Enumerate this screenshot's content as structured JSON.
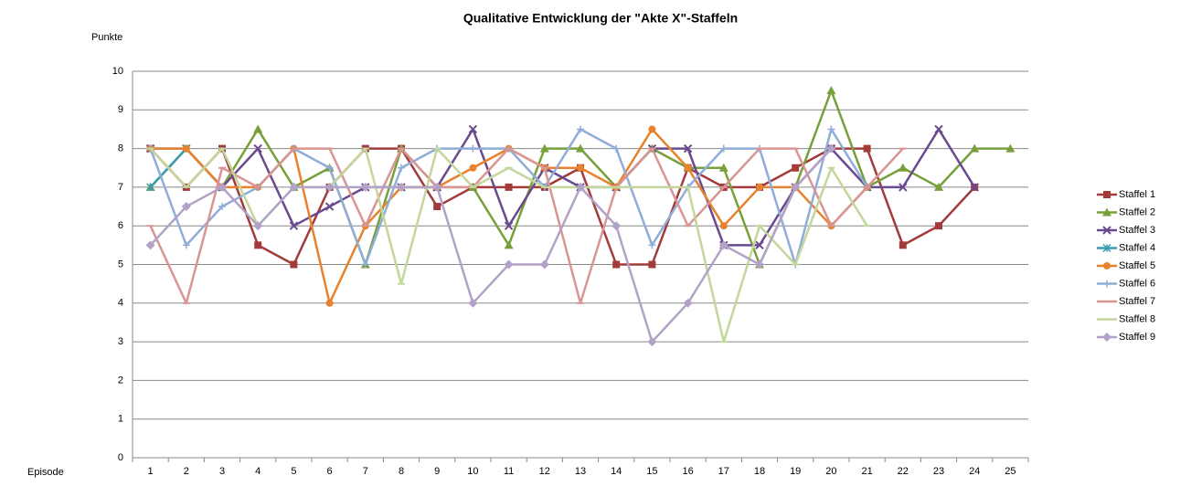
{
  "chart_data": {
    "type": "line",
    "title": "Qualitative Entwicklung der \"Akte X\"-Staffeln",
    "y_label": "Punkte",
    "x_label": "Episode",
    "categories": [
      1,
      2,
      3,
      4,
      5,
      6,
      7,
      8,
      9,
      10,
      11,
      12,
      13,
      14,
      15,
      16,
      17,
      18,
      19,
      20,
      21,
      22,
      23,
      24,
      25
    ],
    "ylim": [
      0,
      10
    ],
    "yticks": [
      0,
      1,
      2,
      3,
      4,
      5,
      6,
      7,
      8,
      9,
      10
    ],
    "grid": true,
    "legend": "right",
    "series": [
      {
        "name": "Staffel 1",
        "color": "#a33b3b",
        "marker": "square",
        "values": [
          8,
          7,
          8,
          5.5,
          5,
          7,
          8,
          8,
          6.5,
          7,
          7,
          7,
          7.5,
          5,
          5,
          7.5,
          7,
          7,
          7.5,
          8,
          8,
          5.5,
          6,
          7,
          null
        ]
      },
      {
        "name": "Staffel 2",
        "color": "#77a03b",
        "marker": "triangle",
        "values": [
          7,
          8,
          7,
          8.5,
          7,
          7.5,
          5,
          8,
          7,
          7,
          5.5,
          8,
          8,
          7,
          8,
          7.5,
          7.5,
          5,
          7,
          9.5,
          7,
          7.5,
          7,
          8,
          8
        ]
      },
      {
        "name": "Staffel 3",
        "color": "#6a4a8e",
        "marker": "x",
        "values": [
          8,
          8,
          7,
          8,
          6,
          6.5,
          7,
          7,
          7,
          8.5,
          6,
          7.5,
          7,
          7,
          8,
          8,
          5.5,
          5.5,
          7,
          8,
          7,
          7,
          8.5,
          7,
          null
        ]
      },
      {
        "name": "Staffel 4",
        "color": "#3a9bb0",
        "marker": "star",
        "values": [
          7,
          8,
          null,
          null,
          null,
          null,
          null,
          null,
          null,
          null,
          null,
          null,
          null,
          null,
          null,
          null,
          null,
          null,
          null,
          null,
          null,
          null,
          null,
          null,
          null
        ]
      },
      {
        "name": "Staffel 5",
        "color": "#e8822e",
        "marker": "circle",
        "values": [
          8,
          8,
          7,
          7,
          8,
          4,
          6,
          7,
          7,
          7.5,
          8,
          7.5,
          7.5,
          7,
          8.5,
          7.5,
          6,
          7,
          7,
          6,
          7,
          null,
          null,
          null,
          null
        ]
      },
      {
        "name": "Staffel 6",
        "color": "#8fadd8",
        "marker": "plus",
        "values": [
          8,
          5.5,
          6.5,
          7,
          8,
          7.5,
          5,
          7.5,
          8,
          8,
          8,
          7,
          8.5,
          8,
          5.5,
          7,
          8,
          8,
          5,
          8.5,
          7,
          null,
          null,
          null,
          null
        ]
      },
      {
        "name": "Staffel 7",
        "color": "#d99594",
        "marker": "dash",
        "values": [
          6,
          4,
          7.5,
          7,
          8,
          8,
          6,
          8,
          7,
          7,
          8,
          7.5,
          4,
          7,
          8,
          6,
          7,
          8,
          8,
          6,
          7,
          8,
          null,
          null,
          null
        ]
      },
      {
        "name": "Staffel 8",
        "color": "#c3d69b",
        "marker": "dash",
        "values": [
          8,
          7,
          8,
          6,
          7,
          7,
          8,
          4.5,
          8,
          7,
          7.5,
          7,
          7,
          7,
          7,
          7,
          3,
          6,
          5,
          7.5,
          6,
          null,
          null,
          null,
          null
        ]
      },
      {
        "name": "Staffel 9",
        "color": "#b3a2c7",
        "marker": "diamond",
        "values": [
          5.5,
          6.5,
          7,
          6,
          7,
          7,
          7,
          7,
          7,
          4,
          5,
          5,
          7,
          6,
          3,
          4,
          5.5,
          5,
          7,
          8,
          null,
          null,
          null,
          null,
          null
        ]
      }
    ]
  }
}
